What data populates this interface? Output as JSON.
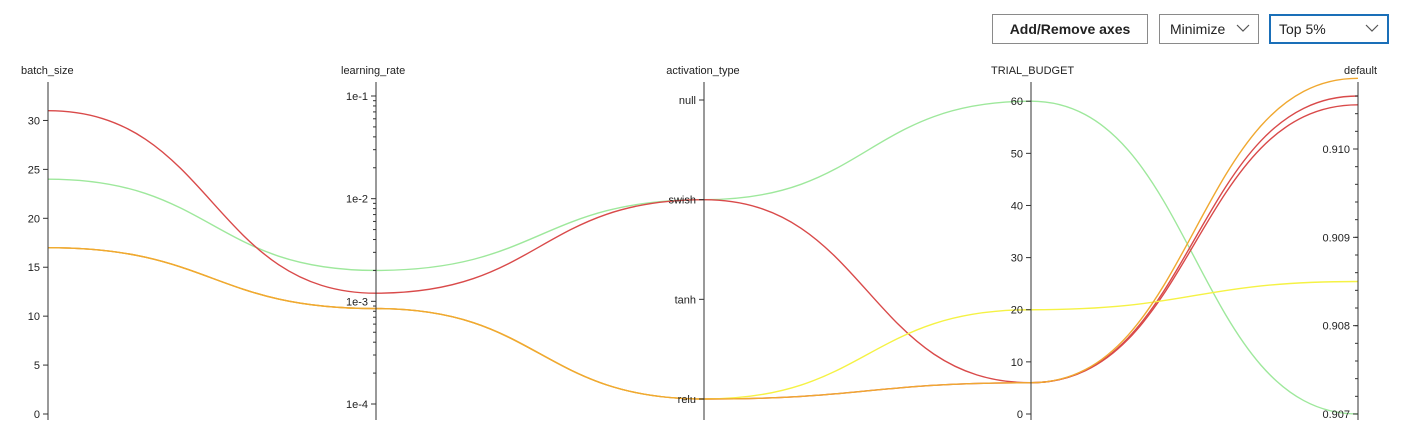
{
  "toolbar": {
    "add_remove_label": "Add/Remove axes",
    "direction_value": "Minimize",
    "filter_value": "Top 5%"
  },
  "colors": {
    "green": "#9ee89c",
    "red": "#d94a4a",
    "yellow": "#f5f244",
    "orange": "#f0a830",
    "axis": "#333333"
  },
  "chart_data": {
    "type": "parallel_coordinates",
    "axes": [
      {
        "name": "batch_size",
        "scale": "linear",
        "range": [
          0,
          32.5
        ],
        "ticks": [
          0,
          5,
          10,
          15,
          20,
          25,
          30
        ],
        "tick_labels": [
          "0",
          "5",
          "10",
          "15",
          "20",
          "25",
          "30"
        ]
      },
      {
        "name": "learning_rate",
        "scale": "log",
        "range": [
          0.0001,
          0.1
        ],
        "ticks": [
          0.0001,
          0.001,
          0.01,
          0.1
        ],
        "tick_labels": [
          "1e-4",
          "1e-3",
          "1e-2",
          "1e-1"
        ]
      },
      {
        "name": "activation_type",
        "scale": "categorical",
        "categories": [
          "relu",
          "tanh",
          "swish",
          "null"
        ],
        "tick_labels": [
          "relu",
          "tanh",
          "swish",
          "null"
        ]
      },
      {
        "name": "TRIAL_BUDGET",
        "scale": "linear",
        "range": [
          0,
          61
        ],
        "ticks": [
          0,
          10,
          20,
          30,
          40,
          50,
          60
        ],
        "tick_labels": [
          "0",
          "10",
          "20",
          "30",
          "40",
          "50",
          "60"
        ]
      },
      {
        "name": "default",
        "scale": "linear",
        "range": [
          0.907,
          0.9106
        ],
        "ticks": [
          0.907,
          0.908,
          0.909,
          0.91
        ],
        "tick_labels": [
          "0.907",
          "0.908",
          "0.909",
          "0.910"
        ]
      }
    ],
    "lines": [
      {
        "color": "green",
        "values": [
          24,
          0.002,
          "swish",
          60,
          0.907
        ]
      },
      {
        "color": "red",
        "values": [
          31,
          0.0012,
          "swish",
          6,
          0.9106
        ]
      },
      {
        "color": "red",
        "values": [
          17,
          0.00085,
          "relu",
          6,
          0.9105
        ]
      },
      {
        "color": "yellow",
        "values": [
          17,
          0.00085,
          "relu",
          20,
          0.9085
        ]
      },
      {
        "color": "orange",
        "values": [
          17,
          0.00085,
          "relu",
          6,
          0.9108
        ]
      }
    ]
  }
}
